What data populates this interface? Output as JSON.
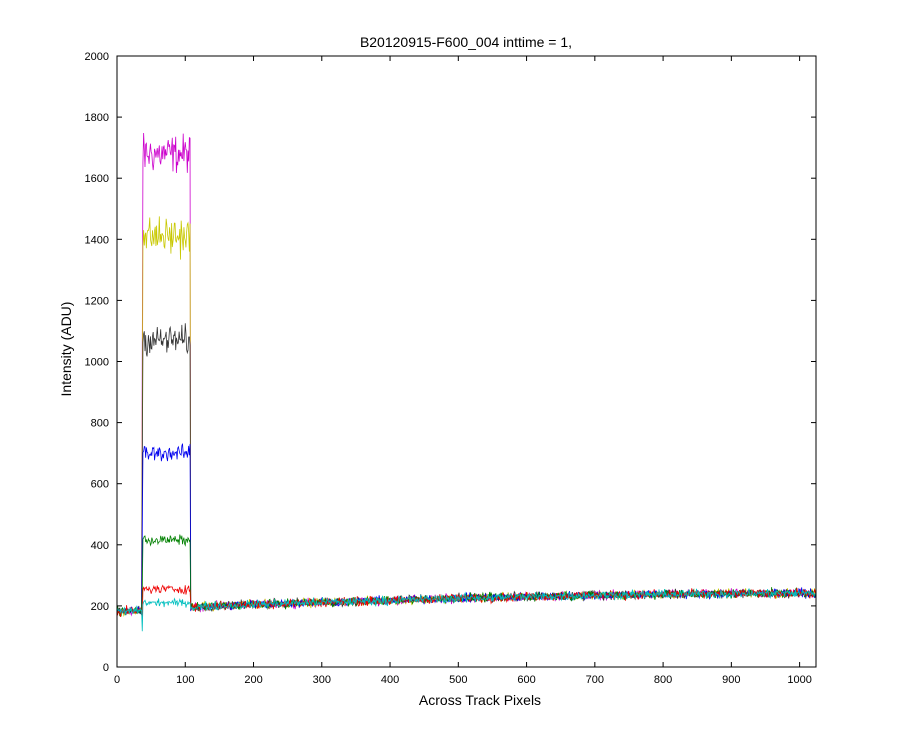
{
  "chart_data": {
    "type": "line",
    "title": "B20120915-F600_004 inttime = 1,",
    "xlabel": "Across Track Pixels",
    "ylabel": "Intensity (ADU)",
    "xlim": [
      0,
      1024
    ],
    "ylim": [
      0,
      2000
    ],
    "xticks": [
      0,
      100,
      200,
      300,
      400,
      500,
      600,
      700,
      800,
      900,
      1000
    ],
    "yticks": [
      0,
      200,
      400,
      600,
      800,
      1000,
      1200,
      1400,
      1600,
      1800,
      2000
    ],
    "grid": false,
    "legend": "none",
    "baseline": {
      "x": [
        0,
        100,
        200,
        300,
        400,
        500,
        600,
        700,
        800,
        900,
        1024
      ],
      "y": [
        180,
        195,
        205,
        212,
        218,
        225,
        230,
        235,
        238,
        240,
        242
      ]
    },
    "noise_amplitude": 15,
    "plateau_range": [
      37,
      107
    ],
    "series": [
      {
        "color": "#cc00cc",
        "plateau": 1680,
        "peak": 1810
      },
      {
        "color": "#c8c800",
        "plateau": 1410,
        "peak": 1540
      },
      {
        "color": "#333333",
        "plateau": 1070,
        "peak": 1170
      },
      {
        "color": "#0000ee",
        "plateau": 700,
        "peak": 755
      },
      {
        "color": "#008000",
        "plateau": 415,
        "peak": 450
      },
      {
        "color": "#ee0000",
        "plateau": 255,
        "peak": 285
      },
      {
        "color": "#00bfbf",
        "plateau": 210,
        "peak": 235
      }
    ]
  }
}
